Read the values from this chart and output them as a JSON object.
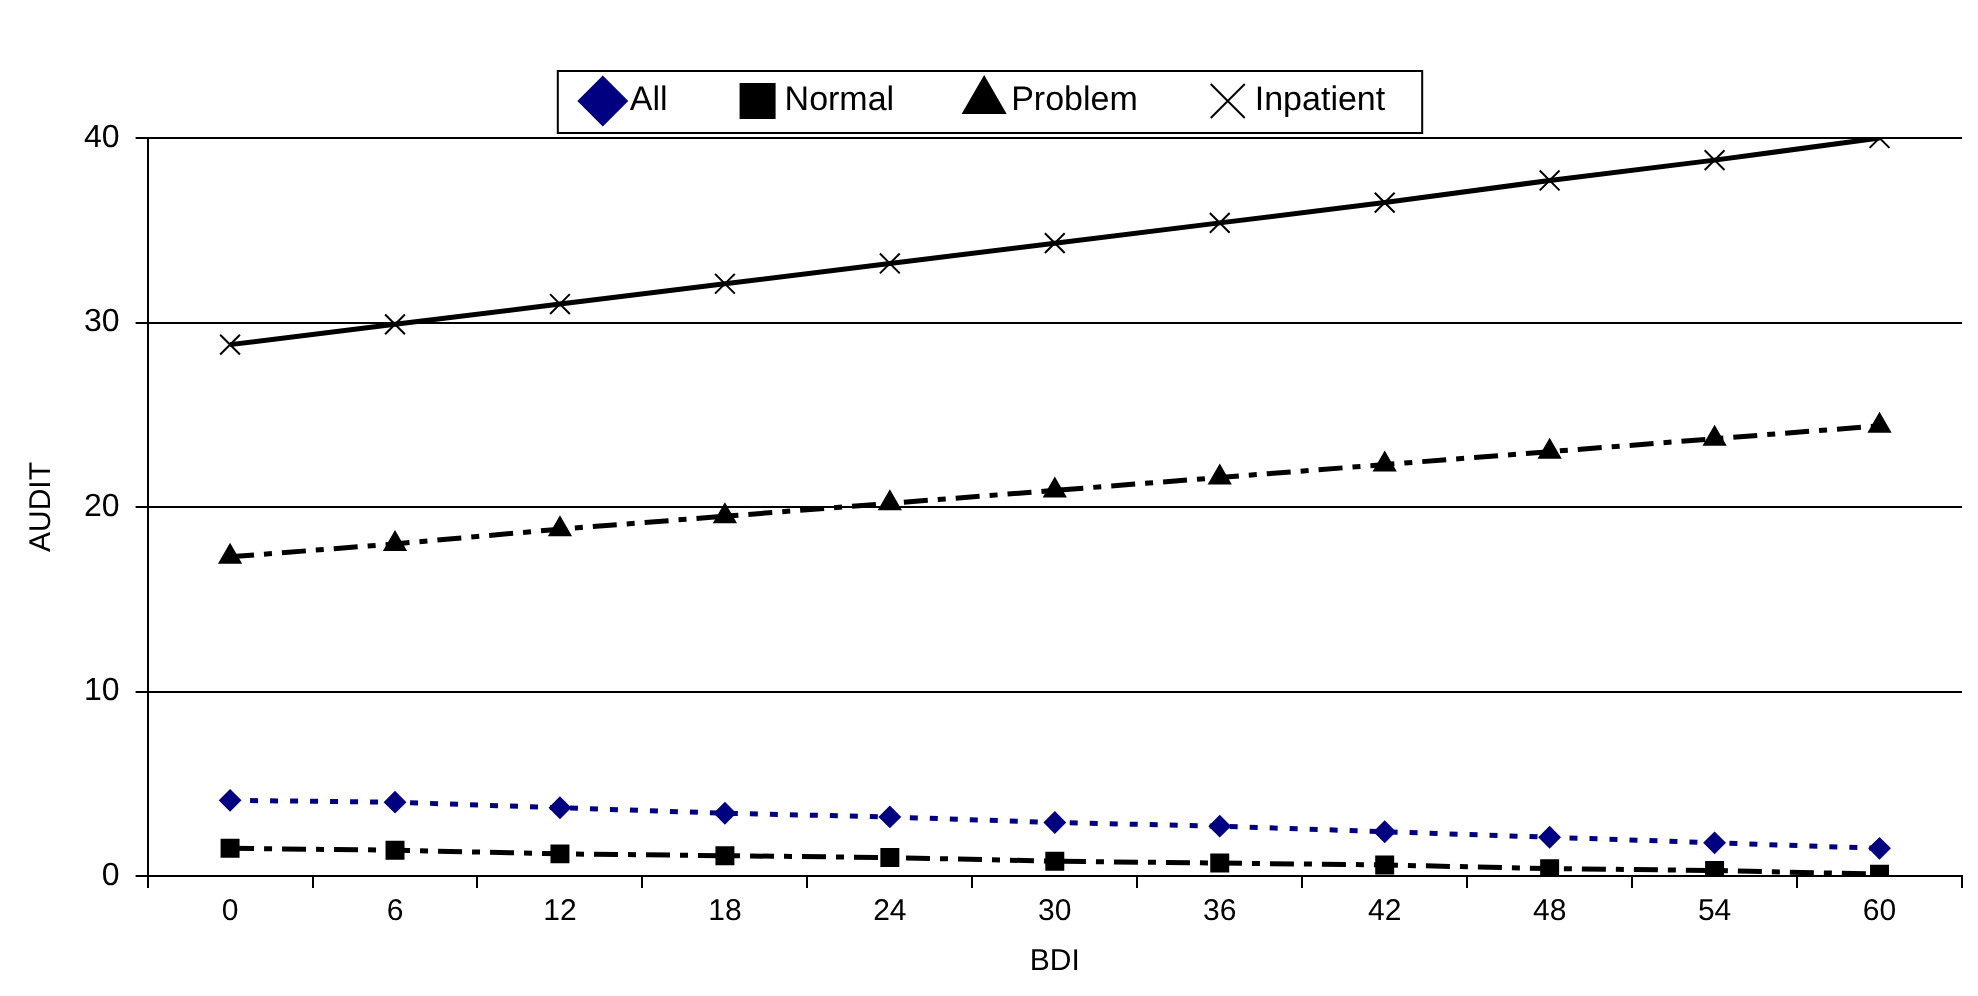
{
  "chart_data": {
    "type": "line",
    "xlabel": "BDI",
    "ylabel": "AUDIT",
    "categories": [
      "0",
      "6",
      "12",
      "18",
      "24",
      "30",
      "36",
      "42",
      "48",
      "54",
      "60"
    ],
    "series": [
      {
        "name": "All",
        "color": "#000080",
        "marker": "diamond",
        "line_style": "dotted",
        "values": [
          4.1,
          4.0,
          3.7,
          3.4,
          3.2,
          2.9,
          2.7,
          2.4,
          2.1,
          1.8,
          1.5
        ]
      },
      {
        "name": "Normal",
        "color": "#000000",
        "marker": "square",
        "line_style": "dashed",
        "values": [
          1.5,
          1.4,
          1.2,
          1.1,
          1.0,
          0.8,
          0.7,
          0.6,
          0.4,
          0.3,
          0.1
        ]
      },
      {
        "name": "Problem",
        "color": "#000000",
        "marker": "triangle",
        "line_style": "dashed",
        "values": [
          17.3,
          18.0,
          18.8,
          19.5,
          20.2,
          20.9,
          21.6,
          22.3,
          23.0,
          23.7,
          24.4
        ]
      },
      {
        "name": "Inpatient",
        "color": "#000000",
        "marker": "cross",
        "line_style": "solid",
        "values": [
          28.8,
          29.9,
          31.0,
          32.1,
          33.2,
          34.3,
          35.4,
          36.5,
          37.7,
          38.8,
          40.0
        ]
      }
    ],
    "ylim": [
      0,
      40
    ],
    "yticks": [
      0,
      10,
      20,
      30,
      40
    ],
    "grid": "y",
    "legend": "top"
  }
}
